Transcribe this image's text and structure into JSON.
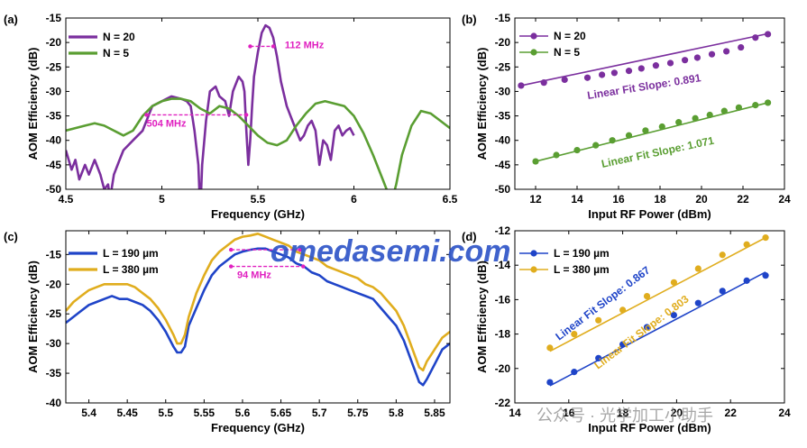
{
  "watermark": {
    "text": "omedasemi.com",
    "color": "#2f55c8"
  },
  "footer_mark": {
    "text": "公众号 · 光学加工小助手"
  },
  "colors": {
    "purple": "#7b2f9e",
    "green": "#5a9e32",
    "blue": "#1f44c8",
    "gold": "#e0ad1e",
    "magenta": "#e020c0",
    "axis": "#000000"
  },
  "chart_data": [
    {
      "panel": "(a)",
      "type": "line",
      "xlabel": "Frequency (GHz)",
      "ylabel": "AOM Efficiency (dB)",
      "xlim": [
        4.5,
        6.5
      ],
      "ylim": [
        -50,
        -15
      ],
      "xticks": [
        "4.5",
        "5",
        "5.5",
        "6",
        "6.5"
      ],
      "yticks": [
        "-50",
        "-45",
        "-40",
        "-35",
        "-30",
        "-25",
        "-20",
        "-15"
      ],
      "legend_position": "top-left",
      "series": [
        {
          "name": "N = 20",
          "color_key": "purple",
          "x": [
            4.5,
            4.53,
            4.55,
            4.57,
            4.6,
            4.62,
            4.65,
            4.68,
            4.7,
            4.72,
            4.73,
            4.75,
            4.78,
            4.8,
            4.85,
            4.9,
            4.95,
            5.0,
            5.05,
            5.1,
            5.13,
            5.15,
            5.17,
            5.19,
            5.2,
            5.21,
            5.23,
            5.25,
            5.28,
            5.3,
            5.33,
            5.35,
            5.37,
            5.4,
            5.42,
            5.43,
            5.44,
            5.45,
            5.46,
            5.47,
            5.48,
            5.5,
            5.52,
            5.54,
            5.56,
            5.58,
            5.6,
            5.62,
            5.65,
            5.68,
            5.7,
            5.72,
            5.74,
            5.76,
            5.78,
            5.8,
            5.82,
            5.84,
            5.86,
            5.88,
            5.9,
            5.92,
            5.94,
            5.96,
            5.98,
            6.0
          ],
          "y": [
            -42,
            -46,
            -44,
            -48,
            -45,
            -47,
            -44,
            -47,
            -50,
            -49,
            -52,
            -47,
            -44,
            -42,
            -40,
            -38,
            -33,
            -32,
            -31,
            -31.5,
            -32,
            -33,
            -38,
            -45,
            -55,
            -45,
            -36,
            -30,
            -29,
            -31,
            -32,
            -35,
            -30,
            -27,
            -28,
            -30,
            -38,
            -45,
            -40,
            -33,
            -27,
            -22,
            -18,
            -16.5,
            -17,
            -19,
            -23,
            -28,
            -33,
            -36,
            -38,
            -40,
            -39,
            -37,
            -36,
            -38,
            -45,
            -40,
            -41,
            -44,
            -38,
            -37,
            -39,
            -38,
            -37.5,
            -39
          ]
        },
        {
          "name": "N = 5",
          "color_key": "green",
          "x": [
            4.5,
            4.55,
            4.6,
            4.65,
            4.7,
            4.75,
            4.8,
            4.85,
            4.9,
            4.95,
            5.0,
            5.05,
            5.1,
            5.15,
            5.2,
            5.25,
            5.3,
            5.35,
            5.4,
            5.45,
            5.5,
            5.55,
            5.6,
            5.65,
            5.7,
            5.75,
            5.8,
            5.85,
            5.9,
            5.95,
            6.0,
            6.05,
            6.1,
            6.15,
            6.18,
            6.2,
            6.22,
            6.25,
            6.3,
            6.35,
            6.4,
            6.45,
            6.5
          ],
          "y": [
            -38,
            -37.5,
            -37,
            -36.5,
            -37,
            -38,
            -39,
            -38,
            -35,
            -33,
            -32,
            -31.5,
            -31.5,
            -32,
            -33.5,
            -34.5,
            -33,
            -33.5,
            -35,
            -37,
            -39,
            -40.5,
            -41,
            -40,
            -37,
            -34.5,
            -32.5,
            -32,
            -32.5,
            -33,
            -35,
            -38.5,
            -43,
            -48,
            -51,
            -52,
            -49,
            -43,
            -37,
            -34,
            -34.5,
            -36,
            -37.5
          ]
        }
      ],
      "annotations": [
        {
          "text": "504 MHz",
          "x1": 4.92,
          "x2": 5.44,
          "y": -34.8,
          "label_x": 4.92,
          "label_y": -37.2,
          "color_key": "magenta"
        },
        {
          "text": "112 MHz",
          "x1": 5.46,
          "x2": 5.58,
          "y": -20.8,
          "label_x": 5.64,
          "label_y": -21.2,
          "color_key": "magenta"
        }
      ]
    },
    {
      "panel": "(b)",
      "type": "scatter",
      "xlabel": "Input RF Power (dBm)",
      "ylabel": "AOM Efficiency (dB)",
      "xlim": [
        11,
        24
      ],
      "ylim": [
        -50,
        -15
      ],
      "xticks": [
        "12",
        "14",
        "16",
        "18",
        "20",
        "22",
        "24"
      ],
      "yticks": [
        "-50",
        "-45",
        "-40",
        "-35",
        "-30",
        "-25",
        "-20",
        "-15"
      ],
      "legend_position": "top-left",
      "series": [
        {
          "name": "N = 20",
          "color_key": "purple",
          "x": [
            11.3,
            12.4,
            13.4,
            14.5,
            15.2,
            15.8,
            16.5,
            17.1,
            17.8,
            18.5,
            19.2,
            19.8,
            20.5,
            21.2,
            21.9,
            22.6,
            23.2
          ],
          "y": [
            -28.8,
            -28.2,
            -27.6,
            -27.2,
            -26.6,
            -26.2,
            -25.8,
            -25.3,
            -24.7,
            -24.2,
            -23.6,
            -23.1,
            -22.4,
            -21.8,
            -21.0,
            -19.0,
            -18.3
          ],
          "fit_label": "Linear Fit Slope: 0.891"
        },
        {
          "name": "N = 5",
          "color_key": "green",
          "x": [
            12.0,
            13.0,
            14.0,
            14.9,
            15.7,
            16.5,
            17.3,
            18.1,
            18.9,
            19.7,
            20.4,
            21.1,
            21.8,
            22.6,
            23.2
          ],
          "y": [
            -44.3,
            -43.0,
            -42.0,
            -41.0,
            -40.0,
            -39.0,
            -38.0,
            -37.2,
            -36.3,
            -35.5,
            -34.8,
            -34.0,
            -33.3,
            -32.8,
            -32.3
          ],
          "fit_label": "Linear Fit Slope: 1.071"
        }
      ],
      "fits": [
        {
          "x": [
            11.3,
            23.2
          ],
          "y": [
            -28.8,
            -18.2
          ],
          "color_key": "purple"
        },
        {
          "x": [
            12.0,
            23.2
          ],
          "y": [
            -44.3,
            -32.3
          ],
          "color_key": "green"
        }
      ]
    },
    {
      "panel": "(c)",
      "type": "line",
      "xlabel": "Frequency (GHz)",
      "ylabel": "AOM Efficiency (dB)",
      "xlim": [
        5.37,
        5.87
      ],
      "ylim": [
        -40,
        -11
      ],
      "xticks": [
        "5.4",
        "5.45",
        "5.5",
        "5.55",
        "5.6",
        "5.65",
        "5.7",
        "5.75",
        "5.8",
        "5.85"
      ],
      "yticks": [
        "-40",
        "-35",
        "-30",
        "-25",
        "-20",
        "-15"
      ],
      "legend_position": "top-left",
      "series": [
        {
          "name": "L = 190 µm",
          "color_key": "blue",
          "x": [
            5.37,
            5.38,
            5.39,
            5.4,
            5.41,
            5.42,
            5.43,
            5.44,
            5.45,
            5.46,
            5.47,
            5.48,
            5.49,
            5.5,
            5.51,
            5.515,
            5.52,
            5.525,
            5.53,
            5.54,
            5.55,
            5.56,
            5.57,
            5.58,
            5.59,
            5.6,
            5.61,
            5.62,
            5.63,
            5.64,
            5.65,
            5.66,
            5.67,
            5.68,
            5.69,
            5.7,
            5.71,
            5.72,
            5.73,
            5.74,
            5.75,
            5.76,
            5.77,
            5.78,
            5.79,
            5.8,
            5.81,
            5.82,
            5.83,
            5.835,
            5.84,
            5.85,
            5.86,
            5.87
          ],
          "y": [
            -26.5,
            -25.5,
            -24.5,
            -23.5,
            -23,
            -22.5,
            -22,
            -22.5,
            -22.5,
            -23,
            -23.5,
            -24.5,
            -26,
            -28,
            -30.5,
            -31.5,
            -31.5,
            -30.5,
            -27,
            -24,
            -21,
            -18.5,
            -17,
            -16,
            -15,
            -14.5,
            -14.2,
            -14,
            -14,
            -14.5,
            -15,
            -15.5,
            -16.5,
            -17,
            -18,
            -18.5,
            -19.5,
            -20,
            -20.5,
            -21,
            -21.5,
            -22,
            -22.5,
            -24,
            -25.5,
            -27,
            -29.5,
            -33,
            -36.5,
            -37,
            -36,
            -33.5,
            -31,
            -30
          ]
        },
        {
          "name": "L = 380 µm",
          "color_key": "gold",
          "x": [
            5.37,
            5.38,
            5.39,
            5.4,
            5.41,
            5.42,
            5.43,
            5.44,
            5.45,
            5.46,
            5.47,
            5.48,
            5.49,
            5.5,
            5.51,
            5.515,
            5.52,
            5.525,
            5.53,
            5.54,
            5.55,
            5.56,
            5.57,
            5.58,
            5.59,
            5.6,
            5.61,
            5.62,
            5.63,
            5.64,
            5.65,
            5.66,
            5.67,
            5.68,
            5.69,
            5.7,
            5.71,
            5.72,
            5.73,
            5.74,
            5.75,
            5.76,
            5.77,
            5.78,
            5.79,
            5.8,
            5.81,
            5.82,
            5.83,
            5.835,
            5.84,
            5.85,
            5.86,
            5.87
          ],
          "y": [
            -24.5,
            -23,
            -22,
            -21,
            -20.5,
            -20,
            -20,
            -20,
            -20,
            -20.5,
            -21.5,
            -22.5,
            -24,
            -26,
            -28.5,
            -30,
            -30,
            -28.5,
            -25.5,
            -21.5,
            -18.5,
            -16,
            -14.5,
            -13.5,
            -12.5,
            -12,
            -11.8,
            -11.5,
            -12,
            -12.5,
            -13,
            -13.5,
            -14.5,
            -15,
            -15.5,
            -16,
            -17,
            -17.5,
            -18,
            -18.5,
            -19,
            -20,
            -20.5,
            -21.5,
            -23,
            -24.5,
            -27,
            -30.5,
            -34,
            -34.5,
            -33,
            -31,
            -29,
            -28
          ]
        }
      ],
      "annotations": [
        {
          "text": "",
          "x1": 5.585,
          "x2": 5.675,
          "y": -14.2,
          "label_x": 5.68,
          "label_y": -13.6,
          "color_key": "magenta"
        },
        {
          "text": "94 MHz",
          "x1": 5.585,
          "x2": 5.679,
          "y": -17.0,
          "label_x": 5.593,
          "label_y": -19.0,
          "color_key": "magenta"
        }
      ]
    },
    {
      "panel": "(d)",
      "type": "scatter",
      "xlabel": "Input RF Power (dBm)",
      "ylabel": "AOM Efficiency (dB)",
      "xlim": [
        14,
        24
      ],
      "ylim": [
        -22,
        -12
      ],
      "xticks": [
        "14",
        "16",
        "18",
        "20",
        "22",
        "24"
      ],
      "yticks": [
        "-22",
        "-20",
        "-18",
        "-16",
        "-14",
        "-12"
      ],
      "legend_position": "top-left",
      "series": [
        {
          "name": "L = 190 µm",
          "color_key": "blue",
          "x": [
            15.3,
            16.2,
            17.1,
            18.0,
            18.9,
            19.9,
            20.8,
            21.7,
            22.6,
            23.3
          ],
          "y": [
            -20.8,
            -20.2,
            -19.4,
            -18.6,
            -17.6,
            -16.9,
            -16.2,
            -15.5,
            -14.9,
            -14.6
          ],
          "fit_label": "Linear Fit Slope: 0.867"
        },
        {
          "name": "L = 380 µm",
          "color_key": "gold",
          "x": [
            15.3,
            16.2,
            17.1,
            18.0,
            18.9,
            19.9,
            20.8,
            21.7,
            22.6,
            23.3
          ],
          "y": [
            -18.8,
            -18.0,
            -17.2,
            -16.6,
            -15.8,
            -15.0,
            -14.2,
            -13.4,
            -12.8,
            -12.4
          ],
          "fit_label": "Linear Fit Slope: 0.803"
        }
      ],
      "fits": [
        {
          "x": [
            15.3,
            23.3
          ],
          "y": [
            -21.0,
            -14.4
          ],
          "color_key": "blue"
        },
        {
          "x": [
            15.3,
            23.3
          ],
          "y": [
            -19.0,
            -12.4
          ],
          "color_key": "gold"
        }
      ]
    }
  ]
}
